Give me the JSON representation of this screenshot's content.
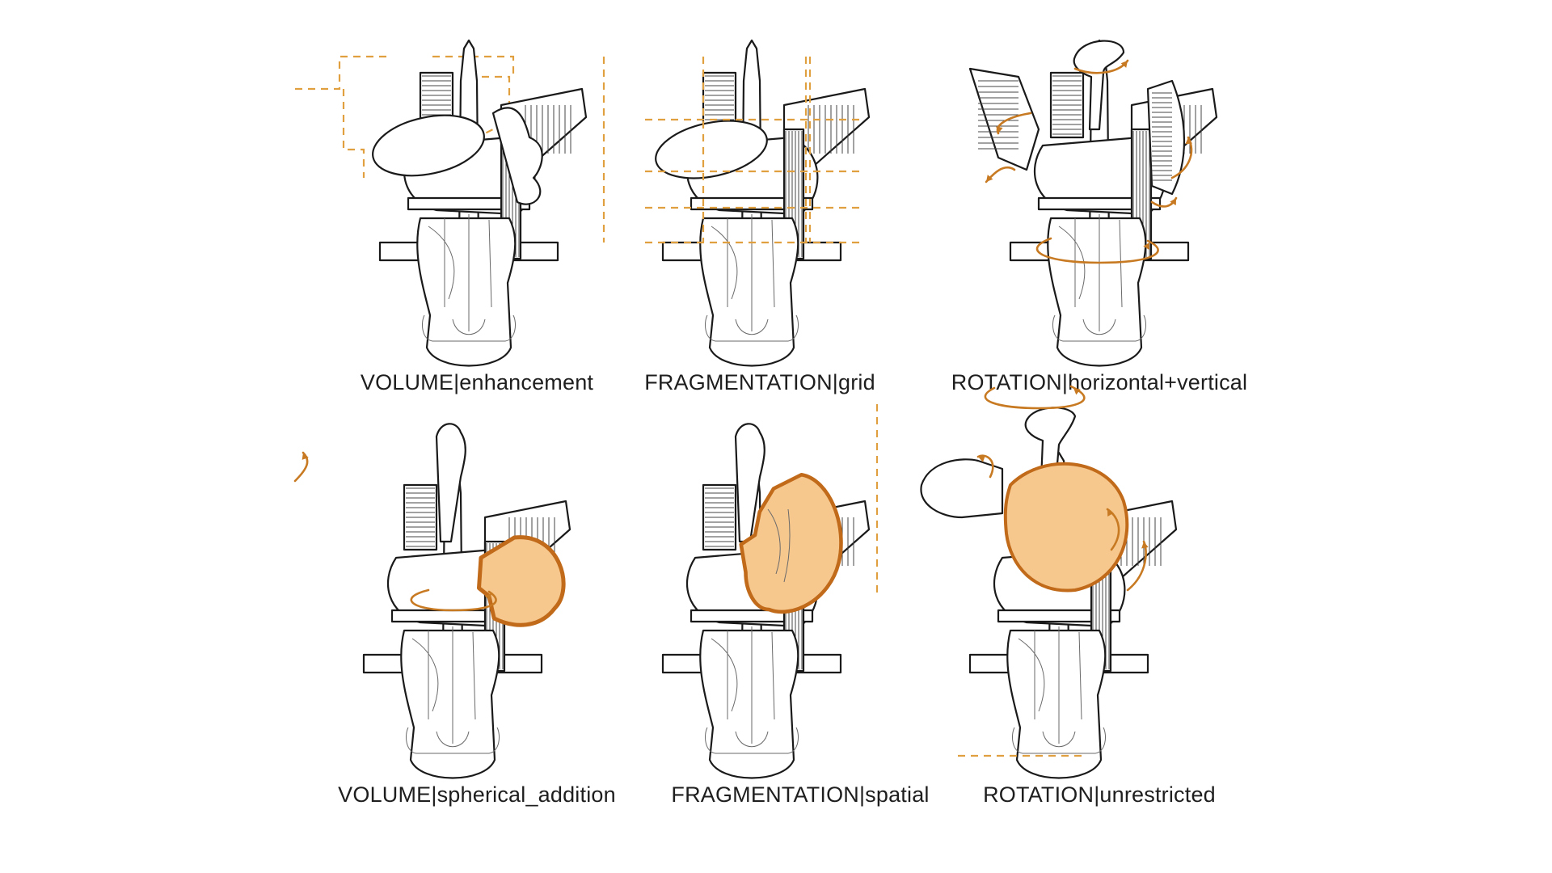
{
  "panels": [
    {
      "id": "volume-enhancement",
      "caption": "VOLUME|enhancement"
    },
    {
      "id": "fragmentation-grid",
      "caption": "FRAGMENTATION|grid"
    },
    {
      "id": "rotation-horizontal-vertical",
      "caption": "ROTATION|horizontal+vertical"
    },
    {
      "id": "volume-spherical-addition",
      "caption": "VOLUME|spherical_addition"
    },
    {
      "id": "fragmentation-spatial",
      "caption": "FRAGMENTATION|spatial"
    },
    {
      "id": "rotation-unrestricted",
      "caption": "ROTATION|unrestricted"
    }
  ],
  "colors": {
    "accent_dash": "#e0a040",
    "accent_arrow": "#c87a22",
    "blob_fill": "#f6c88e",
    "blob_stroke": "#c06a1a",
    "ink": "#1a1a1a"
  }
}
